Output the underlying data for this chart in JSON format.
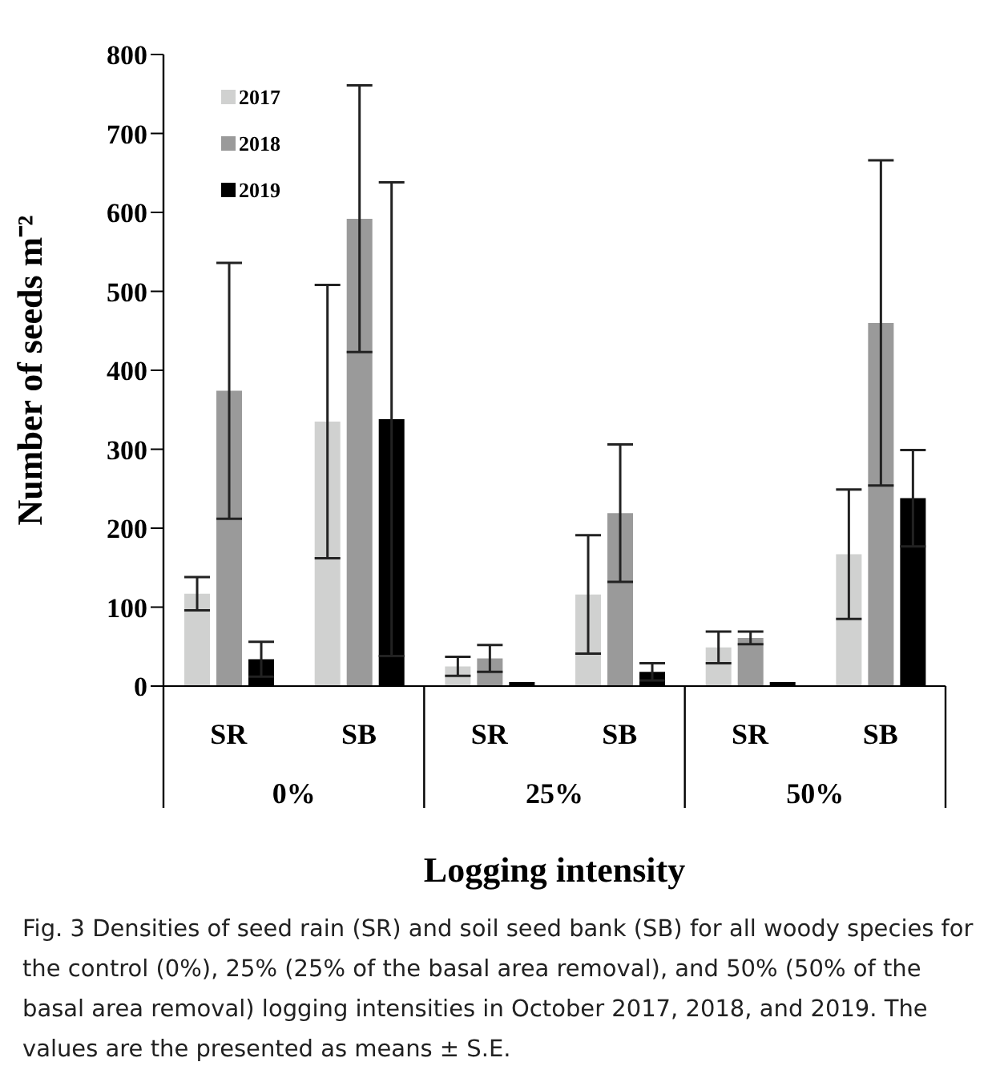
{
  "chart_data": {
    "type": "bar",
    "ylabel": "Number of seeds m⁻²",
    "xlabel": "Logging intensity",
    "categories": [
      "SR",
      "SB",
      "SR",
      "SB",
      "SR",
      "SB"
    ],
    "series": [
      {
        "name": "2017",
        "color": "#d0d1d0",
        "values": [
          117,
          335,
          25,
          116,
          49,
          167
        ],
        "errors": [
          21,
          173,
          12,
          75,
          20,
          82
        ]
      },
      {
        "name": "2018",
        "color": "#9a9a9a",
        "values": [
          374,
          592,
          35,
          219,
          61,
          460
        ],
        "errors": [
          162,
          169,
          17,
          87,
          8,
          206
        ]
      },
      {
        "name": "2019",
        "color": "#000000",
        "values": [
          34,
          338,
          5,
          18,
          5,
          238
        ],
        "errors": [
          22,
          300,
          null,
          11,
          null,
          61
        ]
      }
    ],
    "ylim": [
      0,
      800
    ],
    "yticks": [
      0,
      100,
      200,
      300,
      400,
      500,
      600,
      700,
      800
    ],
    "grid": false,
    "legend": "top left",
    "annotations": [
      "0%",
      "25%",
      "50%",
      "Fig. 3  Densities of seed rain (SR) and soil seed bank (SB) for all woody species for the control (0%), 25% (25% of the basal area removal), and 50% (50% of the basal area removal) logging intensities in October 2017, 2018, and 2019. The values are the presented as means ± S.E."
    ]
  }
}
